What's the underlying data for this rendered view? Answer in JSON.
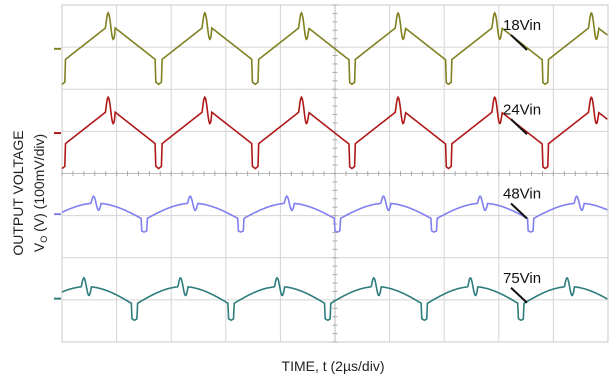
{
  "chart_data": {
    "type": "line",
    "xlabel": "TIME, t (2µs/div)",
    "ylabel_line1": "OUTPUT VOLTAGE",
    "ylabel_line2": "V",
    "ylabel_sub": "O",
    "ylabel_rest": " (V) (100mV/div)",
    "x_divisions": 10,
    "y_divisions": 8,
    "grid": true,
    "series": [
      {
        "name": "18Vin",
        "color": "#808020",
        "points": 6,
        "amplitude": 0.45,
        "spike": 0.22
      },
      {
        "name": "24Vin",
        "color": "#b01818",
        "points": 6,
        "amplitude": 0.45,
        "spike": 0.22
      },
      {
        "name": "48Vin",
        "color": "#7f7ff0",
        "points": 6,
        "amplitude": 0.2,
        "spike": 0.12
      },
      {
        "name": "75Vin",
        "color": "#2e7c7c",
        "points": 6,
        "amplitude": 0.22,
        "spike": 0.15
      }
    ]
  }
}
